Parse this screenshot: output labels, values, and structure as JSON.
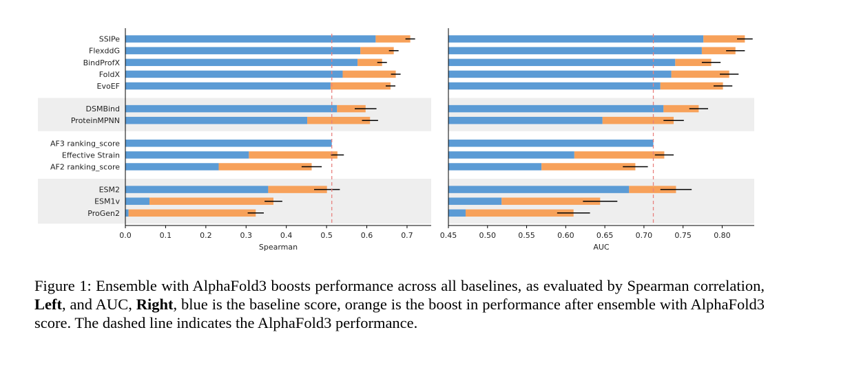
{
  "chart_data": [
    {
      "type": "bar",
      "stacked": true,
      "orientation": "horizontal",
      "xlabel": "Spearman",
      "xlim": [
        0.0,
        0.76
      ],
      "xticks": [
        "0.0",
        "0.1",
        "0.2",
        "0.3",
        "0.4",
        "0.5",
        "0.6",
        "0.7"
      ],
      "reference_line": 0.513,
      "groups": [
        {
          "shaded": false,
          "items": [
            {
              "name": "SSIPe",
              "baseline": 0.622,
              "boosted": 0.708,
              "err": 0.012
            },
            {
              "name": "FlexddG",
              "baseline": 0.584,
              "boosted": 0.667,
              "err": 0.012
            },
            {
              "name": "BindProfX",
              "baseline": 0.577,
              "boosted": 0.638,
              "err": 0.012
            },
            {
              "name": "FoldX",
              "baseline": 0.54,
              "boosted": 0.672,
              "err": 0.012
            },
            {
              "name": "EvoEF",
              "baseline": 0.51,
              "boosted": 0.659,
              "err": 0.012
            }
          ]
        },
        {
          "shaded": true,
          "items": [
            {
              "name": "DSMBind",
              "baseline": 0.526,
              "boosted": 0.597,
              "err": 0.027
            },
            {
              "name": "ProteinMPNN",
              "baseline": 0.452,
              "boosted": 0.608,
              "err": 0.02
            }
          ]
        },
        {
          "shaded": false,
          "items": [
            {
              "name": "AF3 ranking_score",
              "baseline": 0.513,
              "boosted": 0.513,
              "err": 0
            },
            {
              "name": "Effective Strain",
              "baseline": 0.307,
              "boosted": 0.527,
              "err": 0.016
            },
            {
              "name": "AF2 ranking_score",
              "baseline": 0.232,
              "boosted": 0.463,
              "err": 0.025
            }
          ]
        },
        {
          "shaded": true,
          "items": [
            {
              "name": "ESM2",
              "baseline": 0.355,
              "boosted": 0.501,
              "err": 0.032
            },
            {
              "name": "ESM1v",
              "baseline": 0.06,
              "boosted": 0.368,
              "err": 0.022
            },
            {
              "name": "ProGen2",
              "baseline": 0.008,
              "boosted": 0.324,
              "err": 0.02
            }
          ]
        }
      ]
    },
    {
      "type": "bar",
      "stacked": true,
      "orientation": "horizontal",
      "xlabel": "AUC",
      "xlim": [
        0.45,
        0.841
      ],
      "xticks": [
        "0.45",
        "0.50",
        "0.55",
        "0.60",
        "0.65",
        "0.70",
        "0.75",
        "0.80"
      ],
      "reference_line": 0.712,
      "groups": [
        {
          "shaded": false,
          "items": [
            {
              "name": "SSIPe",
              "baseline": 0.776,
              "boosted": 0.829,
              "err": 0.01
            },
            {
              "name": "FlexddG",
              "baseline": 0.774,
              "boosted": 0.817,
              "err": 0.012
            },
            {
              "name": "BindProfX",
              "baseline": 0.74,
              "boosted": 0.786,
              "err": 0.012
            },
            {
              "name": "FoldX",
              "baseline": 0.735,
              "boosted": 0.809,
              "err": 0.012
            },
            {
              "name": "EvoEF",
              "baseline": 0.721,
              "boosted": 0.801,
              "err": 0.012
            }
          ]
        },
        {
          "shaded": true,
          "items": [
            {
              "name": "DSMBind",
              "baseline": 0.725,
              "boosted": 0.77,
              "err": 0.012
            },
            {
              "name": "ProteinMPNN",
              "baseline": 0.647,
              "boosted": 0.738,
              "err": 0.013
            }
          ]
        },
        {
          "shaded": false,
          "items": [
            {
              "name": "AF3 ranking_score",
              "baseline": 0.712,
              "boosted": 0.712,
              "err": 0
            },
            {
              "name": "Effective Strain",
              "baseline": 0.611,
              "boosted": 0.726,
              "err": 0.012
            },
            {
              "name": "AF2 ranking_score",
              "baseline": 0.569,
              "boosted": 0.689,
              "err": 0.016
            }
          ]
        },
        {
          "shaded": true,
          "items": [
            {
              "name": "ESM2",
              "baseline": 0.681,
              "boosted": 0.741,
              "err": 0.02
            },
            {
              "name": "ESM1v",
              "baseline": 0.518,
              "boosted": 0.644,
              "err": 0.022
            },
            {
              "name": "ProGen2",
              "baseline": 0.472,
              "boosted": 0.61,
              "err": 0.021
            }
          ]
        }
      ]
    }
  ],
  "colors": {
    "baseline": "#5b9bd5",
    "boost": "#f7a15a",
    "reference": "#e8817e",
    "shade": "#eeeeee",
    "error": "#000000"
  },
  "caption": {
    "prefix": "Figure 1: Ensemble with AlphaFold3 boosts performance across all baselines, as evaluated by Spearman correlation, ",
    "left_word": "Left",
    "middle": ", and AUC, ",
    "right_word": "Right",
    "suffix": ", blue is the baseline score, orange is the boost in performance after ensemble with AlphaFold3 score.  The dashed line indicates the AlphaFold3 performance."
  }
}
